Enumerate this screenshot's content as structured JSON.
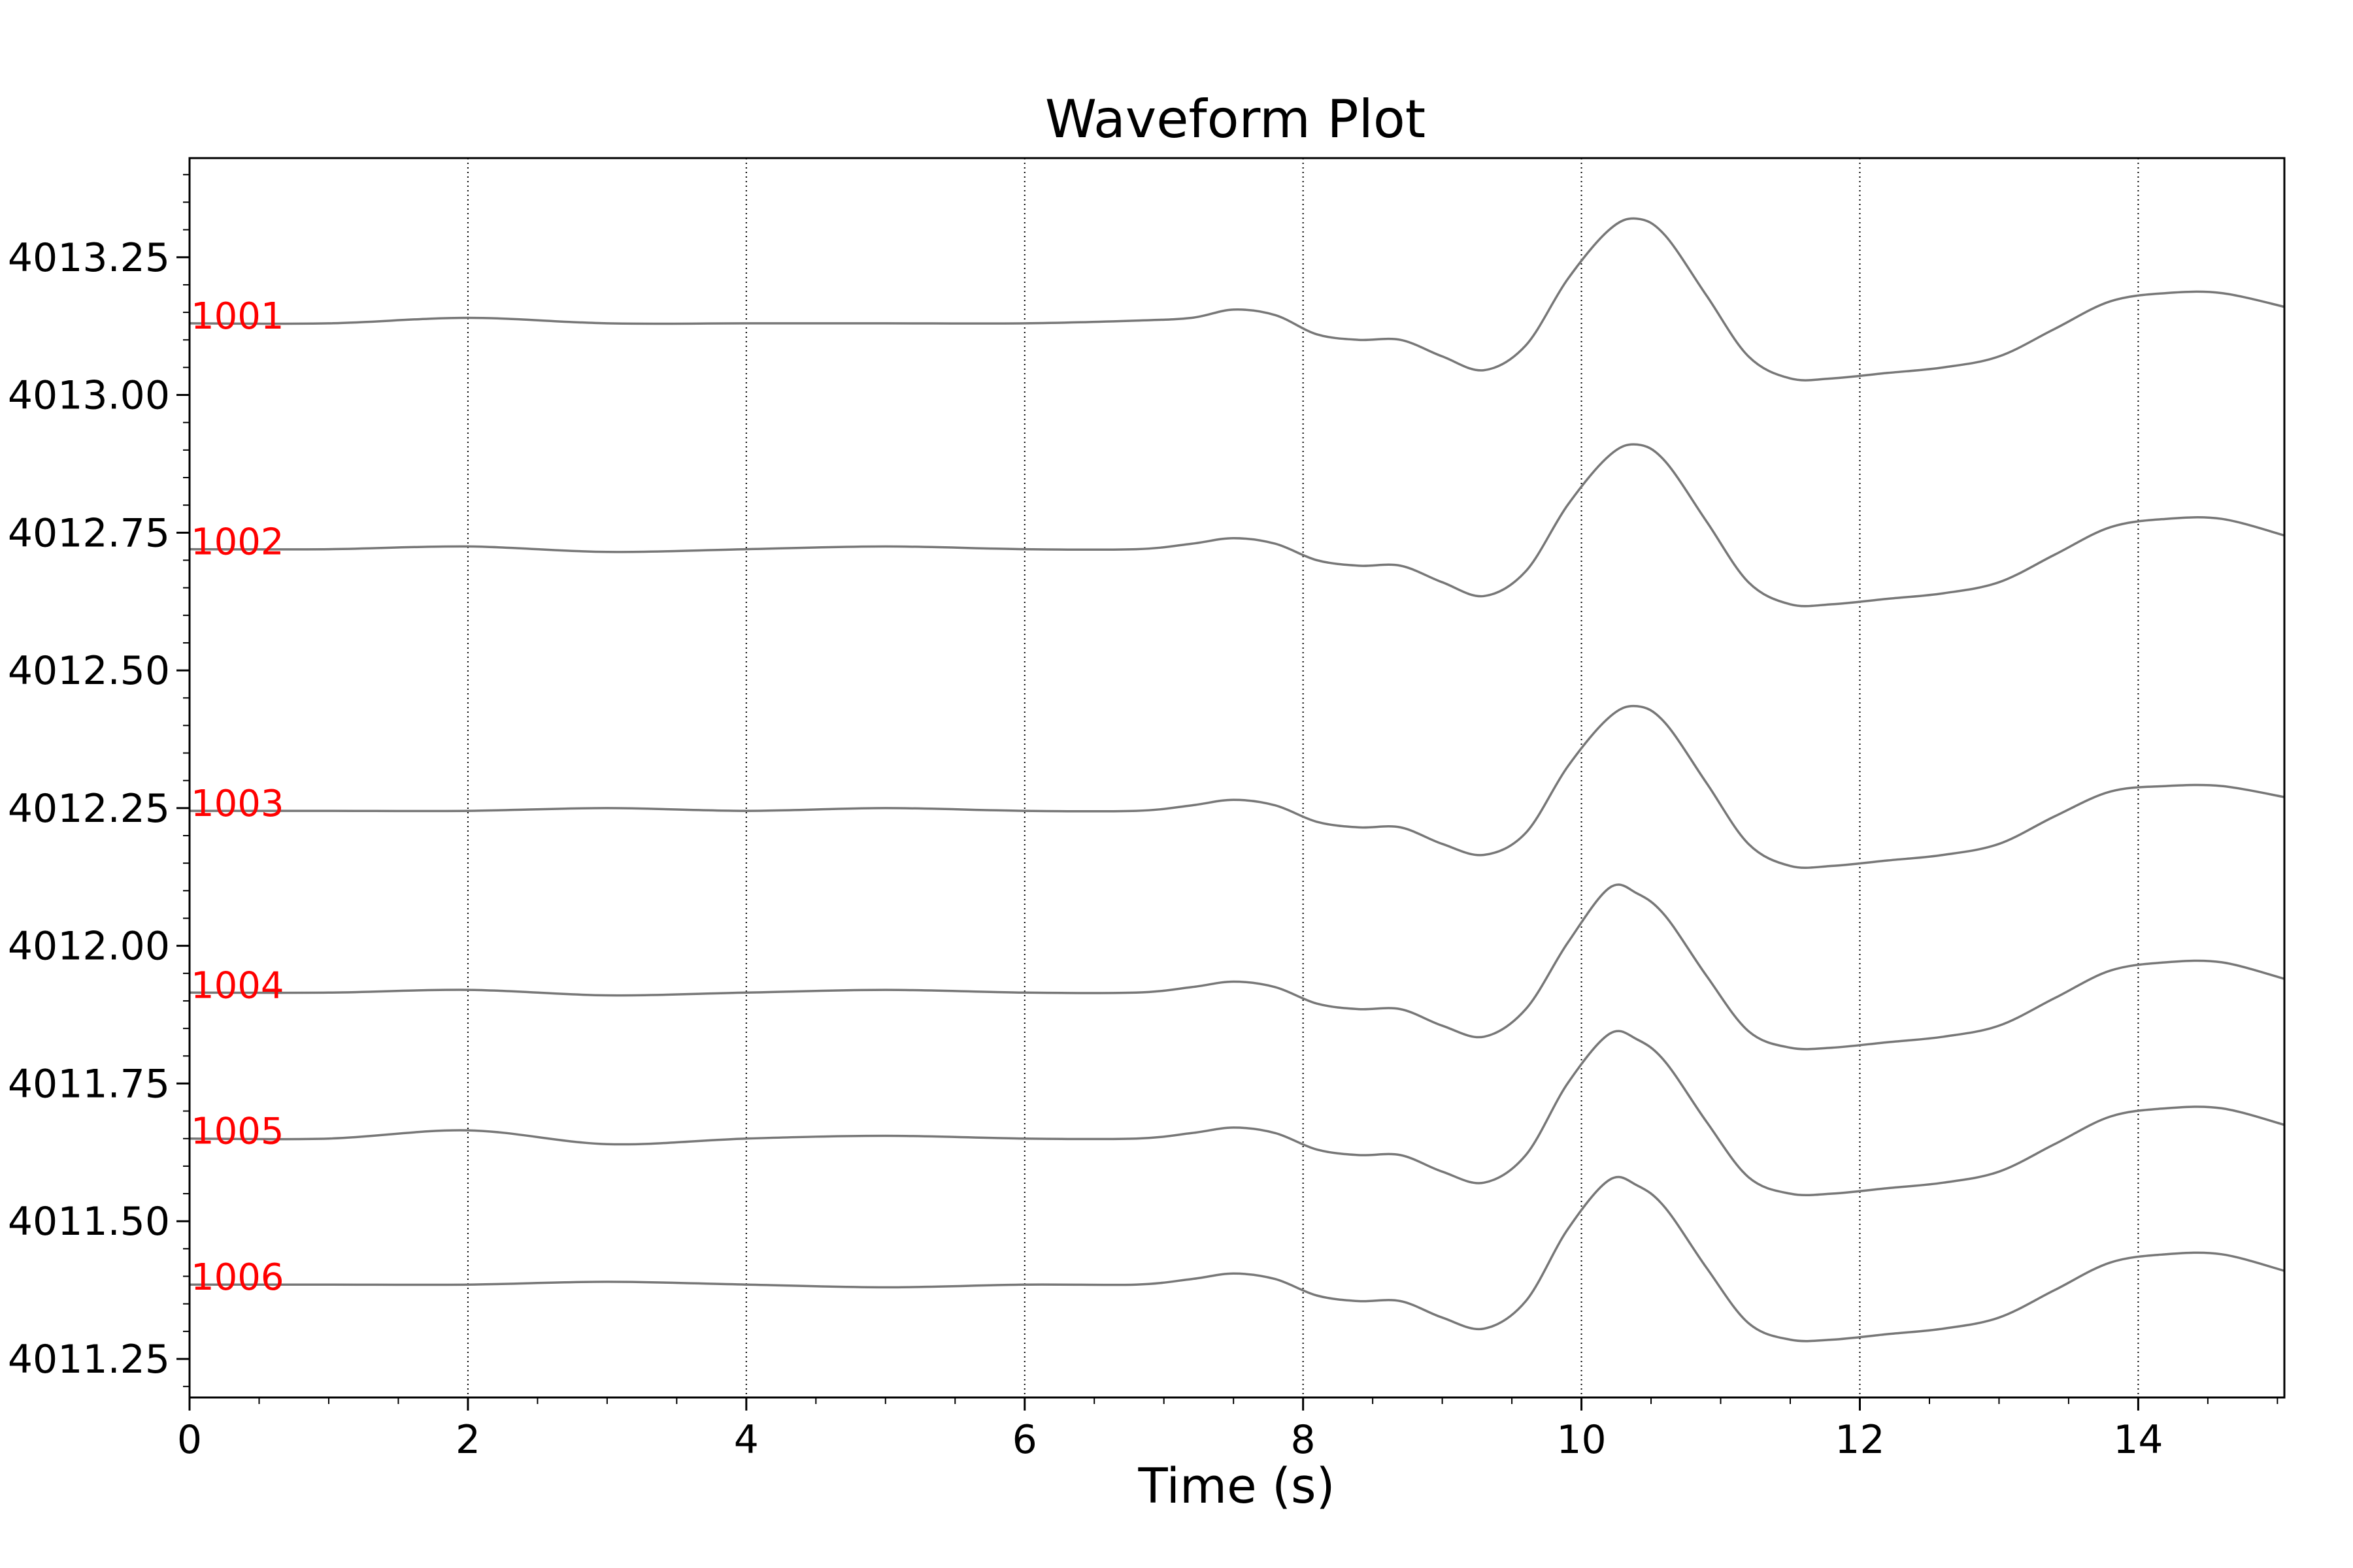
{
  "chart_data": {
    "type": "line",
    "title": "Waveform Plot",
    "xlabel": "Time (s)",
    "ylabel": "",
    "xlim": [
      0,
      15.05
    ],
    "ylim": [
      4011.18,
      4013.43
    ],
    "x_ticks": [
      0,
      2,
      4,
      6,
      8,
      10,
      12,
      14
    ],
    "y_ticks": [
      4011.25,
      4011.5,
      4011.75,
      4012.0,
      4012.25,
      4012.5,
      4012.75,
      4013.0,
      4013.25
    ],
    "y_tick_labels": [
      "4011.25",
      "4011.50",
      "4011.75",
      "4012.00",
      "4012.25",
      "4012.50",
      "4012.75",
      "4013.00",
      "4013.25"
    ],
    "grid": "vertical-dotted",
    "line_color": "#777777",
    "label_color": "#ff0000",
    "x": [
      0.0,
      1.0,
      2.0,
      3.0,
      4.0,
      5.0,
      6.0,
      6.8,
      7.2,
      7.5,
      7.8,
      8.1,
      8.4,
      8.7,
      9.0,
      9.3,
      9.6,
      9.9,
      10.2,
      10.4,
      10.6,
      10.9,
      11.2,
      11.5,
      11.8,
      12.2,
      12.6,
      13.0,
      13.4,
      13.8,
      14.2,
      14.6,
      15.05
    ],
    "series": [
      {
        "name": "1001",
        "offset": 4013.13,
        "values": [
          0.0,
          0.0,
          0.01,
          0.0,
          0.0,
          0.0,
          0.0,
          0.005,
          0.01,
          0.025,
          0.015,
          -0.02,
          -0.03,
          -0.03,
          -0.06,
          -0.085,
          -0.04,
          0.08,
          0.17,
          0.19,
          0.16,
          0.05,
          -0.06,
          -0.1,
          -0.1,
          -0.09,
          -0.08,
          -0.06,
          -0.01,
          0.04,
          0.055,
          0.055,
          0.03
        ]
      },
      {
        "name": "1002",
        "offset": 4012.72,
        "values": [
          0.0,
          0.0,
          0.005,
          -0.005,
          0.0,
          0.005,
          0.0,
          0.0,
          0.01,
          0.02,
          0.01,
          -0.02,
          -0.03,
          -0.03,
          -0.06,
          -0.085,
          -0.04,
          0.08,
          0.17,
          0.19,
          0.16,
          0.05,
          -0.06,
          -0.1,
          -0.1,
          -0.09,
          -0.08,
          -0.06,
          -0.01,
          0.04,
          0.055,
          0.055,
          0.025
        ]
      },
      {
        "name": "1003",
        "offset": 4012.245,
        "values": [
          0.0,
          0.0,
          0.0,
          0.005,
          0.0,
          0.005,
          0.0,
          0.0,
          0.01,
          0.02,
          0.01,
          -0.02,
          -0.03,
          -0.03,
          -0.06,
          -0.08,
          -0.04,
          0.08,
          0.17,
          0.19,
          0.16,
          0.05,
          -0.06,
          -0.1,
          -0.1,
          -0.09,
          -0.08,
          -0.06,
          -0.01,
          0.035,
          0.045,
          0.045,
          0.025
        ]
      },
      {
        "name": "1004",
        "offset": 4011.915,
        "values": [
          0.0,
          0.0,
          0.005,
          -0.005,
          0.0,
          0.005,
          0.0,
          0.0,
          0.01,
          0.02,
          0.01,
          -0.02,
          -0.03,
          -0.03,
          -0.06,
          -0.08,
          -0.03,
          0.09,
          0.19,
          0.18,
          0.14,
          0.03,
          -0.07,
          -0.1,
          -0.1,
          -0.09,
          -0.08,
          -0.06,
          -0.01,
          0.04,
          0.055,
          0.055,
          0.025
        ]
      },
      {
        "name": "1005",
        "offset": 4011.65,
        "values": [
          0.0,
          0.0,
          0.015,
          -0.01,
          0.0,
          0.005,
          0.0,
          0.0,
          0.01,
          0.02,
          0.01,
          -0.02,
          -0.03,
          -0.03,
          -0.06,
          -0.08,
          -0.03,
          0.1,
          0.19,
          0.18,
          0.14,
          0.03,
          -0.07,
          -0.1,
          -0.1,
          -0.09,
          -0.08,
          -0.06,
          -0.01,
          0.04,
          0.055,
          0.055,
          0.025
        ]
      },
      {
        "name": "1006",
        "offset": 4011.385,
        "values": [
          0.0,
          0.0,
          0.0,
          0.005,
          0.0,
          -0.005,
          0.0,
          0.0,
          0.01,
          0.02,
          0.01,
          -0.02,
          -0.03,
          -0.03,
          -0.06,
          -0.08,
          -0.03,
          0.1,
          0.19,
          0.18,
          0.14,
          0.03,
          -0.07,
          -0.1,
          -0.1,
          -0.09,
          -0.08,
          -0.06,
          -0.01,
          0.04,
          0.055,
          0.055,
          0.025
        ]
      }
    ]
  }
}
